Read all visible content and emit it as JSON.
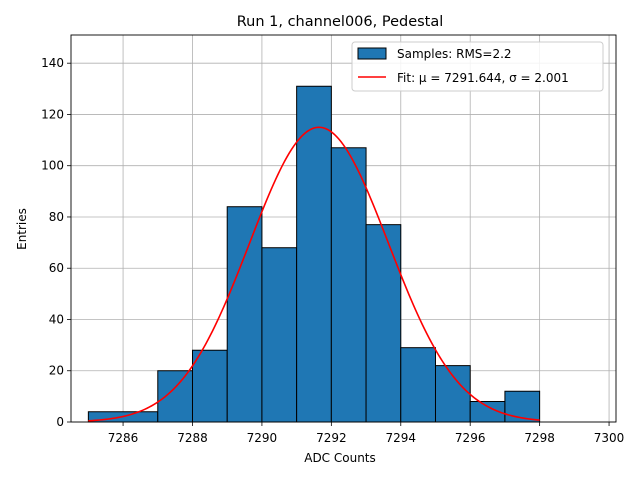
{
  "chart_data": {
    "type": "bar",
    "title": "Run 1, channel006, Pedestal",
    "xlabel": "ADC Counts",
    "ylabel": "Entries",
    "xlim": [
      7284.5,
      7300.2
    ],
    "ylim": [
      0,
      151
    ],
    "xticks": [
      7286,
      7288,
      7290,
      7292,
      7294,
      7296,
      7298,
      7300
    ],
    "yticks": [
      0,
      20,
      40,
      60,
      80,
      100,
      120,
      140
    ],
    "grid": true,
    "legend_position": "top-right",
    "histogram": {
      "name": "Samples: RMS=2.2",
      "color": "#1f77b4",
      "bin_edges": [
        7285,
        7287,
        7288,
        7289,
        7290,
        7291,
        7292,
        7293,
        7294,
        7295,
        7296,
        7297,
        7298
      ],
      "values": [
        4,
        20,
        28,
        84,
        68,
        131,
        107,
        77,
        29,
        22,
        8,
        12
      ]
    },
    "fit": {
      "name": "Fit: μ = 7291.644, σ = 2.001",
      "color": "#ff0000",
      "mu": 7291.644,
      "sigma": 2.001,
      "amplitude": 115,
      "x_range": [
        7285,
        7298
      ]
    }
  }
}
